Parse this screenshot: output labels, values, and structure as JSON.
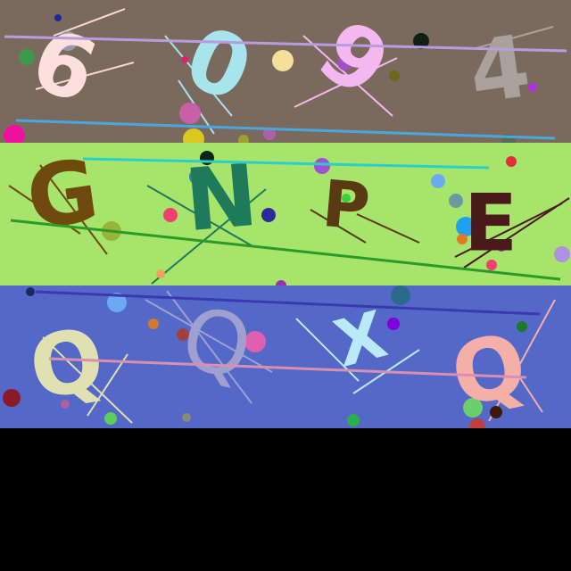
{
  "background": "#000000",
  "rows": [
    {
      "name": "row-1",
      "color": "#7a6a5e",
      "characters": [
        {
          "text": "6",
          "color": "#fde0dd"
        },
        {
          "text": "0",
          "color": "#a8e4ec"
        },
        {
          "text": "9",
          "color": "#f4b8f0"
        },
        {
          "text": "4",
          "color": "#aaa09c"
        }
      ],
      "line_colors": [
        "#b89ce0",
        "#4aa6e0"
      ]
    },
    {
      "name": "row-2",
      "color": "#a6e46c",
      "characters": [
        {
          "text": "G",
          "color": "#6e4a0e"
        },
        {
          "text": "N",
          "color": "#1e7a5a"
        },
        {
          "text": "P",
          "color": "#5a3a14"
        },
        {
          "text": "E",
          "color": "#4a1a1a"
        }
      ],
      "line_colors": [
        "#2ad0c8",
        "#2a9a2a"
      ]
    },
    {
      "name": "row-3",
      "color": "#5468c8",
      "characters": [
        {
          "text": "Q",
          "color": "#e0e0b0"
        },
        {
          "text": "Q",
          "color": "#a0a0d0"
        },
        {
          "text": "X",
          "color": "#b8eafa"
        },
        {
          "text": "Q",
          "color": "#f4b0a8"
        }
      ],
      "line_colors": [
        "#3a3ab0",
        "#d890b0"
      ]
    }
  ]
}
